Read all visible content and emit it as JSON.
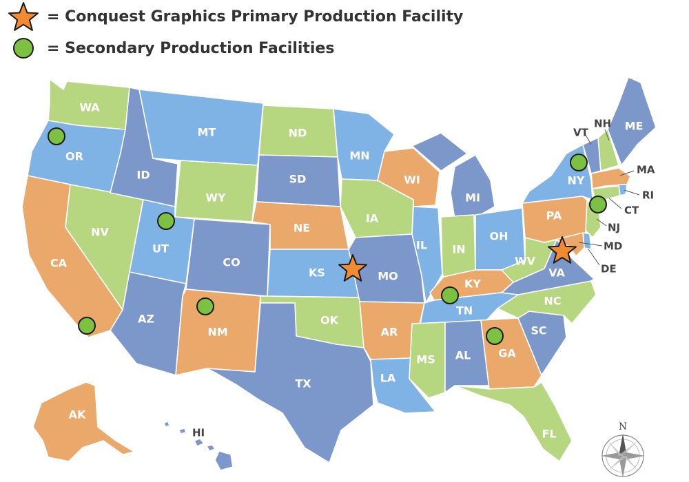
{
  "legend": {
    "primary": {
      "label": "= Conquest Graphics Primary Production Facility",
      "marker": "star",
      "color": "#f28a31"
    },
    "secondary": {
      "label": "= Secondary Production Facilities",
      "marker": "circle",
      "color": "#7dc142"
    }
  },
  "colors": {
    "blue": "#7fb2e5",
    "slate": "#7c97c9",
    "green": "#b6d680",
    "orange": "#eaa86b",
    "primary_marker": "#f28a31",
    "secondary_marker": "#7dc142",
    "outline": "#ffffff"
  },
  "states": [
    {
      "abbr": "WA",
      "color": "green"
    },
    {
      "abbr": "OR",
      "color": "blue"
    },
    {
      "abbr": "CA",
      "color": "orange"
    },
    {
      "abbr": "ID",
      "color": "slate"
    },
    {
      "abbr": "NV",
      "color": "green"
    },
    {
      "abbr": "MT",
      "color": "blue"
    },
    {
      "abbr": "WY",
      "color": "green"
    },
    {
      "abbr": "UT",
      "color": "blue"
    },
    {
      "abbr": "AZ",
      "color": "slate"
    },
    {
      "abbr": "CO",
      "color": "slate"
    },
    {
      "abbr": "NM",
      "color": "orange"
    },
    {
      "abbr": "ND",
      "color": "green"
    },
    {
      "abbr": "SD",
      "color": "slate"
    },
    {
      "abbr": "NE",
      "color": "orange"
    },
    {
      "abbr": "KS",
      "color": "blue"
    },
    {
      "abbr": "OK",
      "color": "green"
    },
    {
      "abbr": "TX",
      "color": "slate"
    },
    {
      "abbr": "MN",
      "color": "blue"
    },
    {
      "abbr": "IA",
      "color": "green"
    },
    {
      "abbr": "MO",
      "color": "slate"
    },
    {
      "abbr": "AR",
      "color": "orange"
    },
    {
      "abbr": "LA",
      "color": "blue"
    },
    {
      "abbr": "WI",
      "color": "orange"
    },
    {
      "abbr": "IL",
      "color": "blue"
    },
    {
      "abbr": "MI",
      "color": "slate"
    },
    {
      "abbr": "IN",
      "color": "green"
    },
    {
      "abbr": "OH",
      "color": "blue"
    },
    {
      "abbr": "KY",
      "color": "orange"
    },
    {
      "abbr": "TN",
      "color": "blue"
    },
    {
      "abbr": "MS",
      "color": "green"
    },
    {
      "abbr": "AL",
      "color": "slate"
    },
    {
      "abbr": "GA",
      "color": "orange"
    },
    {
      "abbr": "FL",
      "color": "green"
    },
    {
      "abbr": "SC",
      "color": "slate"
    },
    {
      "abbr": "NC",
      "color": "green"
    },
    {
      "abbr": "VA",
      "color": "slate"
    },
    {
      "abbr": "WV",
      "color": "green"
    },
    {
      "abbr": "PA",
      "color": "orange"
    },
    {
      "abbr": "NY",
      "color": "blue"
    },
    {
      "abbr": "VT",
      "color": "slate"
    },
    {
      "abbr": "NH",
      "color": "green"
    },
    {
      "abbr": "ME",
      "color": "slate"
    },
    {
      "abbr": "MA",
      "color": "orange"
    },
    {
      "abbr": "RI",
      "color": "blue"
    },
    {
      "abbr": "CT",
      "color": "green"
    },
    {
      "abbr": "NJ",
      "color": "green"
    },
    {
      "abbr": "DE",
      "color": "blue"
    },
    {
      "abbr": "MD",
      "color": "orange"
    },
    {
      "abbr": "AK",
      "color": "orange"
    },
    {
      "abbr": "HI",
      "color": "slate"
    }
  ],
  "facilities": {
    "primary": [
      "KS",
      "VA"
    ],
    "secondary": [
      "OR",
      "CA",
      "UT",
      "NM",
      "NY",
      "NJ",
      "TN",
      "GA"
    ]
  },
  "compass": {
    "label": "N",
    "icon": "compass-rose-icon"
  }
}
